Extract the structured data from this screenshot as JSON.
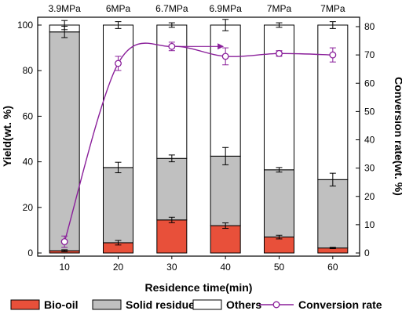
{
  "chart_data": {
    "type": "bar",
    "stacked": true,
    "xlabel": "Residence time(min)",
    "ylabel_left": "Yield(wt. %)",
    "ylabel_right": "Conversion rate(wt. %)",
    "categories": [
      "10",
      "20",
      "30",
      "40",
      "50",
      "60"
    ],
    "top_labels": [
      "3.9MPa",
      "6MPa",
      "6.7MPa",
      "6.9MPa",
      "7MPa",
      "7MPa"
    ],
    "ylim_left": [
      0,
      100
    ],
    "yticks_left": [
      "0",
      "20",
      "40",
      "60",
      "80",
      "100"
    ],
    "ylim_right": [
      0,
      84
    ],
    "yticks_right": [
      "0",
      "10",
      "20",
      "30",
      "40",
      "50",
      "60",
      "70",
      "80"
    ],
    "xticks": [
      "10",
      "20",
      "30",
      "40",
      "50",
      "60"
    ],
    "series": [
      {
        "name": "Bio-oil",
        "color": "#e8503a",
        "values": [
          1.0,
          4.5,
          14.5,
          12.0,
          7.0,
          2.2
        ],
        "errors": [
          0.4,
          1.0,
          1.2,
          1.2,
          0.8,
          0.3
        ]
      },
      {
        "name": "Solid residue",
        "color": "#c0c0c0",
        "values": [
          96.0,
          33.0,
          27.0,
          30.5,
          29.5,
          30.0
        ],
        "errors": [
          2.5,
          2.3,
          1.5,
          3.8,
          1.0,
          2.8
        ]
      },
      {
        "name": "Others",
        "color": "#ffffff",
        "values": [
          3.0,
          62.5,
          58.5,
          57.5,
          63.5,
          67.8
        ],
        "errors": [
          2.0,
          1.5,
          1.0,
          2.5,
          1.0,
          1.5
        ]
      }
    ],
    "line_series": {
      "name": "Conversion rate",
      "color": "#8a1f9a",
      "axis": "right",
      "values": [
        4.0,
        67.0,
        73.0,
        69.5,
        70.5,
        70.0
      ],
      "errors": [
        2.0,
        2.5,
        1.5,
        3.0,
        1.0,
        2.5
      ]
    },
    "annotation_arrow": {
      "from_category": "30",
      "to_category": "40",
      "value_right": 73.0
    },
    "legend": {
      "placement": "bottom",
      "entries": [
        "Bio-oil",
        "Solid residue",
        "Others",
        "Conversion rate"
      ]
    },
    "grid": false
  }
}
